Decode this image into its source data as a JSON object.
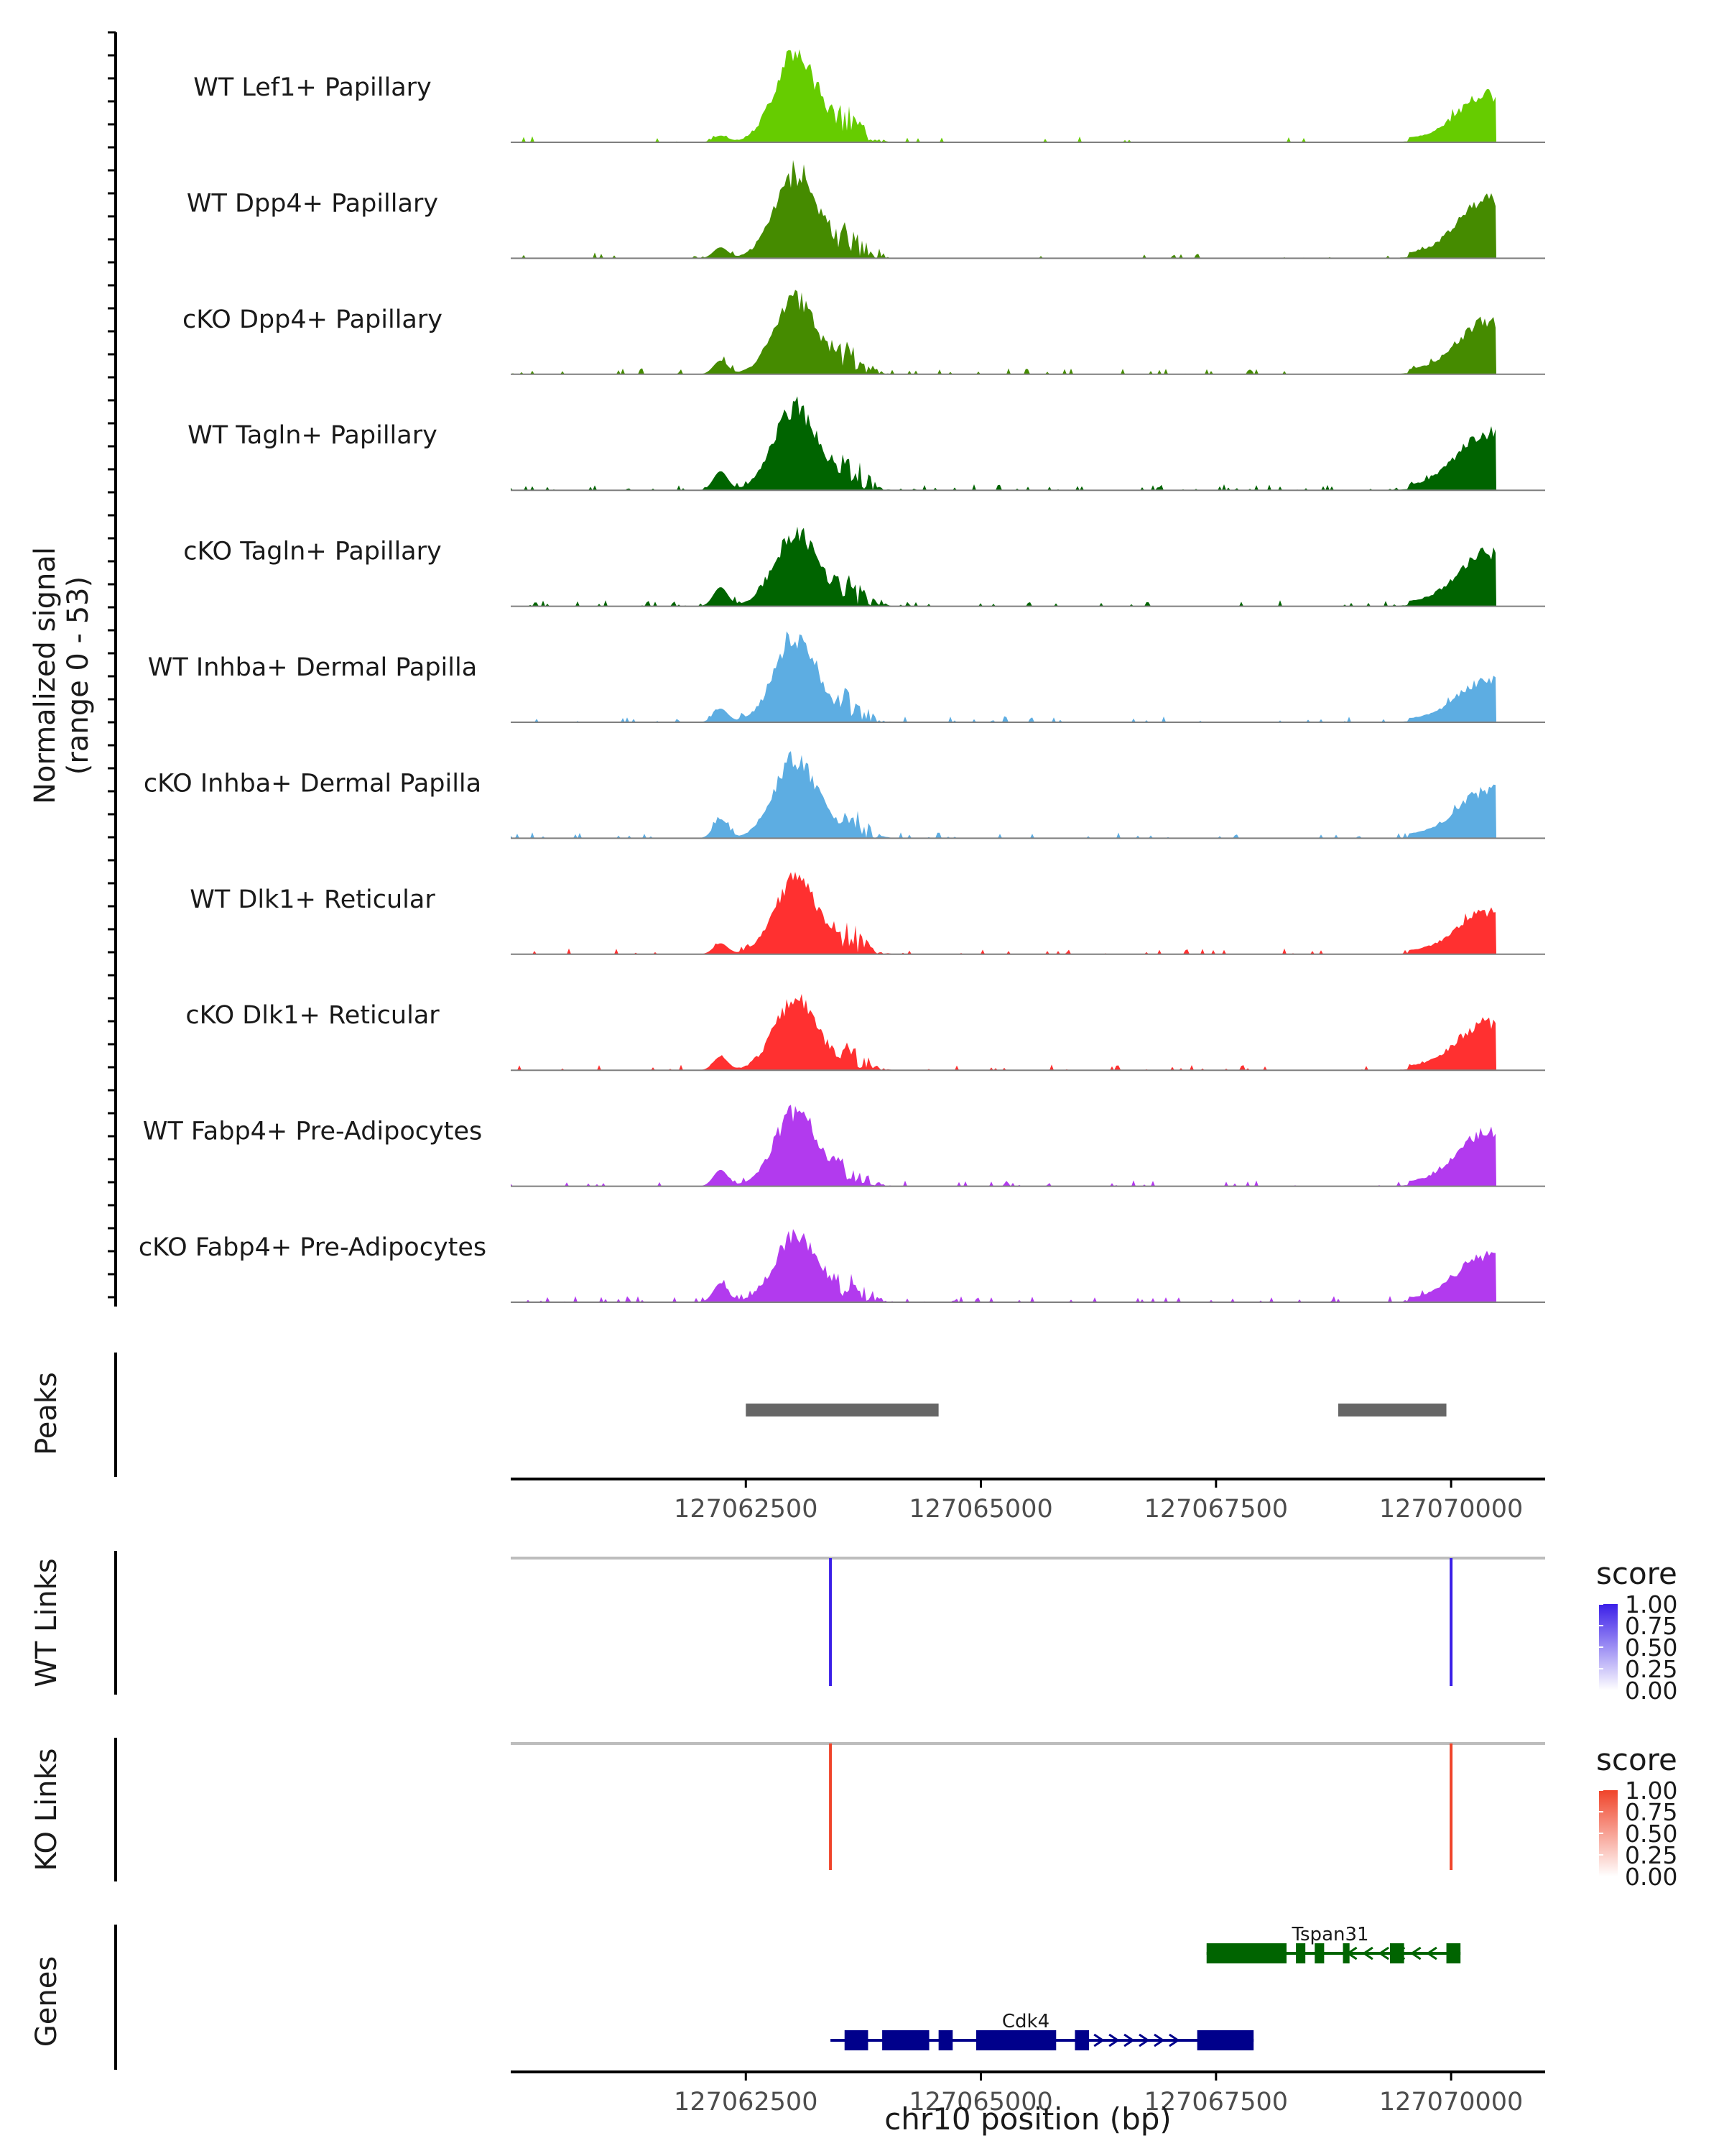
{
  "chart_data": {
    "type": "area",
    "region": "chr10",
    "x_range": [
      127060000,
      127071000
    ],
    "y_range": [
      0,
      53
    ],
    "y_axis_title_line1": "Normalized signal",
    "y_axis_title_line2": "(range 0 - 53)",
    "x_axis_title": "chr10 position (bp)",
    "x_ticks": [
      127062500,
      127065000,
      127067500,
      127070000
    ],
    "x_tick_labels": [
      "127062500",
      "127065000",
      "127067500",
      "127070000"
    ],
    "tracks": [
      {
        "name": "WT Lef1+ Papillary",
        "color": "#66cc00",
        "main": 1.0,
        "tail": 0.45,
        "noise": 0.12
      },
      {
        "name": "WT Dpp4+ Papillary",
        "color": "#458b00",
        "main": 0.95,
        "tail": 0.55,
        "noise": 0.2
      },
      {
        "name": "cKO Dpp4+ Papillary",
        "color": "#458b00",
        "main": 0.85,
        "tail": 0.5,
        "noise": 0.25
      },
      {
        "name": "WT Tagln+ Papillary",
        "color": "#006400",
        "main": 0.95,
        "tail": 0.55,
        "noise": 0.35
      },
      {
        "name": "cKO Tagln+ Papillary",
        "color": "#006400",
        "main": 0.85,
        "tail": 0.5,
        "noise": 0.35
      },
      {
        "name": "WT Inhba+ Dermal Papilla",
        "color": "#5dade2",
        "main": 0.95,
        "tail": 0.4,
        "noise": 0.25
      },
      {
        "name": "cKO Inhba+ Dermal Papilla",
        "color": "#5dade2",
        "main": 0.9,
        "tail": 0.45,
        "noise": 0.35
      },
      {
        "name": "WT Dlk1+ Reticular",
        "color": "#ff3030",
        "main": 0.85,
        "tail": 0.4,
        "noise": 0.2
      },
      {
        "name": "cKO Dlk1+ Reticular",
        "color": "#ff3030",
        "main": 0.8,
        "tail": 0.45,
        "noise": 0.25
      },
      {
        "name": "WT Fabp4+ Pre-Adipocytes",
        "color": "#b23aee",
        "main": 0.85,
        "tail": 0.5,
        "noise": 0.3
      },
      {
        "name": "cKO Fabp4+ Pre-Adipocytes",
        "color": "#b23aee",
        "main": 0.75,
        "tail": 0.45,
        "noise": 0.35
      }
    ],
    "peaks_label": "Peaks",
    "peaks": [
      [
        127062500,
        127064550
      ],
      [
        127068800,
        127069950
      ]
    ],
    "wt_links": {
      "label": "WT Links",
      "color": "#3b1fe8",
      "positions": [
        127063400,
        127070000
      ],
      "legend_title": "score",
      "legend_values": [
        "1.00",
        "0.75",
        "0.50",
        "0.25",
        "0.00"
      ]
    },
    "ko_links": {
      "label": "KO Links",
      "color": "#f0442a",
      "positions": [
        127063400,
        127070000
      ],
      "legend_title": "score",
      "legend_values": [
        "1.00",
        "0.75",
        "0.50",
        "0.25",
        "0.00"
      ]
    },
    "genes_label": "Genes",
    "genes": [
      {
        "name": "Tspan31",
        "color": "#006400",
        "start": 127067400,
        "end": 127070100,
        "strand": "-"
      },
      {
        "name": "Cdk4",
        "color": "#00008b",
        "start": 127063400,
        "end": 127067900,
        "strand": "+"
      }
    ]
  }
}
